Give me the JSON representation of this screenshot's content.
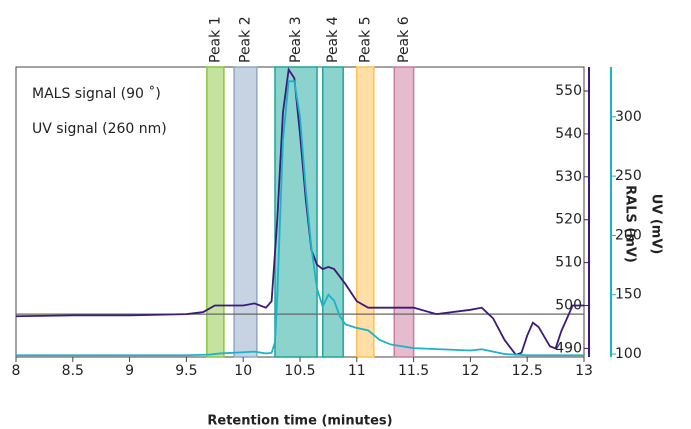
{
  "chart_data": {
    "type": "line",
    "annotations": [
      "MALS signal (90 ˚)",
      "UV signal (260 nm)"
    ],
    "xlabel": "Retention time (minutes)",
    "ylabel": "RALS (mV)",
    "y2label": "UV (mV)",
    "xlim": [
      8,
      13
    ],
    "xticks": [
      8,
      8.5,
      9,
      9.5,
      10,
      10.5,
      11,
      11.5,
      12,
      12.5,
      13
    ],
    "ylim": [
      488,
      555.6
    ],
    "yticks": [
      490,
      500,
      510,
      520,
      530,
      540,
      550
    ],
    "y2lim": [
      97.5,
      342
    ],
    "y2ticks": [
      100,
      150,
      200,
      250,
      300
    ],
    "baseline": 498,
    "peaks": [
      {
        "label": "Peak 1",
        "range": [
          9.68,
          9.83
        ],
        "color": "#8cc63f"
      },
      {
        "label": "Peak 2",
        "range": [
          9.92,
          10.12
        ],
        "color": "#8fa8c8"
      },
      {
        "label": "Peak 3",
        "range": [
          10.28,
          10.65
        ],
        "color": "#1aa79c"
      },
      {
        "label": "Peak 4",
        "range": [
          10.7,
          10.88
        ],
        "color": "#1aa79c"
      },
      {
        "label": "Peak 5",
        "range": [
          11.0,
          11.15
        ],
        "color": "#ffc04d"
      },
      {
        "label": "Peak 6",
        "range": [
          11.33,
          11.5
        ],
        "color": "#cc7a9e"
      }
    ],
    "series": [
      {
        "name": "RALS",
        "color": "#3d1a78",
        "axis": "y",
        "x": [
          8,
          8.5,
          9,
          9.5,
          9.65,
          9.75,
          10,
          10.1,
          10.2,
          10.25,
          10.3,
          10.35,
          10.4,
          10.45,
          10.5,
          10.55,
          10.6,
          10.65,
          10.7,
          10.75,
          10.8,
          10.9,
          11,
          11.1,
          11.3,
          11.5,
          11.7,
          12,
          12.1,
          12.2,
          12.3,
          12.4,
          12.45,
          12.5,
          12.55,
          12.6,
          12.7,
          12.75,
          12.8,
          12.9,
          13
        ],
        "values": [
          497.5,
          497.7,
          497.7,
          498,
          498.5,
          500,
          500,
          500.5,
          499.5,
          501,
          520,
          545,
          555,
          553,
          540,
          525,
          513,
          509.5,
          508.5,
          509,
          508.5,
          505,
          501,
          499.5,
          499.5,
          499.5,
          498,
          499,
          499.5,
          497,
          492,
          488.5,
          489,
          493,
          496,
          495,
          490.5,
          490,
          494,
          500,
          500
        ]
      },
      {
        "name": "UV",
        "color": "#1bb3c8",
        "axis": "y2",
        "x": [
          8,
          9.5,
          9.7,
          9.8,
          10,
          10.1,
          10.2,
          10.25,
          10.28,
          10.3,
          10.35,
          10.4,
          10.45,
          10.5,
          10.55,
          10.6,
          10.65,
          10.7,
          10.75,
          10.8,
          10.85,
          10.9,
          11,
          11.1,
          11.2,
          11.3,
          11.5,
          12,
          12.1,
          12.3,
          12.5,
          13
        ],
        "values": [
          99,
          99,
          99.5,
          100.5,
          101.5,
          102,
          100.5,
          101,
          110,
          150,
          280,
          330,
          330,
          300,
          240,
          190,
          155,
          140,
          150,
          145,
          132,
          125,
          122,
          120,
          112,
          108,
          105,
          103,
          104,
          100,
          99,
          99
        ]
      }
    ]
  }
}
